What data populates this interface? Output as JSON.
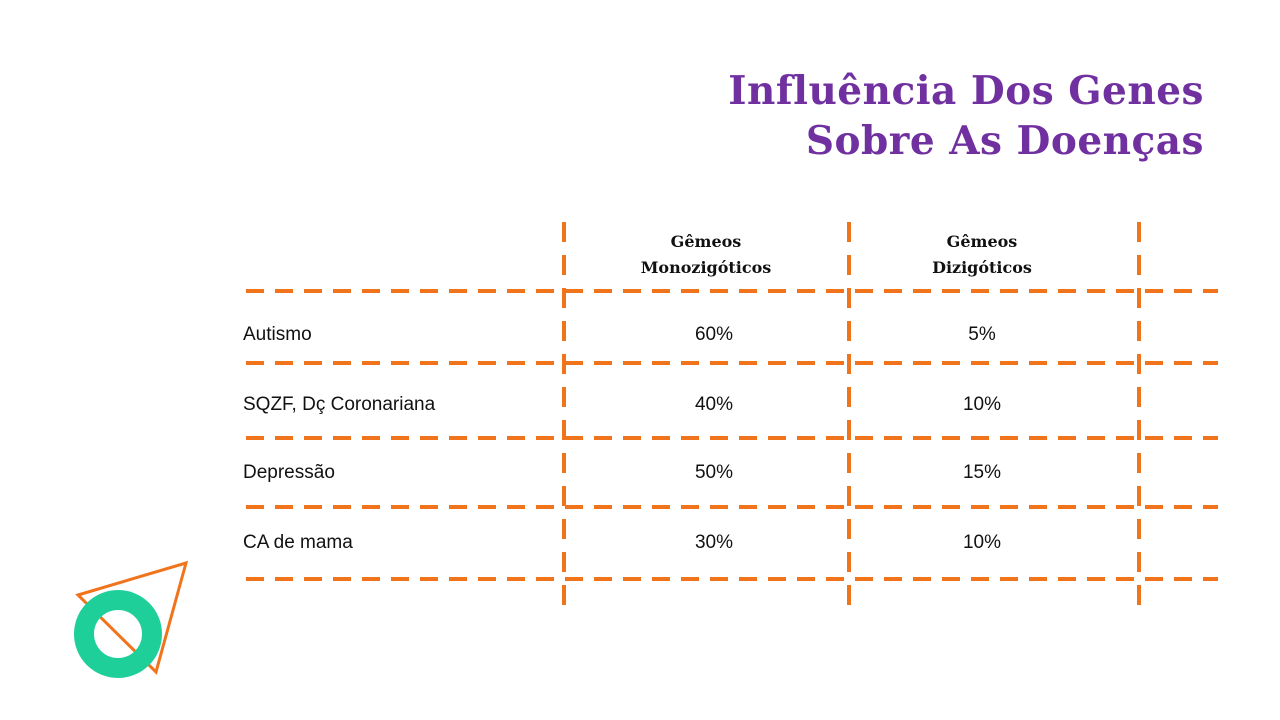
{
  "title": {
    "line1": "Influência Dos Genes",
    "line2": "Sobre As Doenças"
  },
  "table": {
    "headers": {
      "mono": {
        "line1": "Gêmeos",
        "line2": "Monozigóticos"
      },
      "di": {
        "line1": "Gêmeos",
        "line2": "Dizigóticos"
      }
    },
    "rows": [
      {
        "label": "Autismo",
        "mono": "60%",
        "di": "5%"
      },
      {
        "label": "SQZF, Dç Coronariana",
        "mono": "40%",
        "di": "10%"
      },
      {
        "label": "Depressão",
        "mono": "50%",
        "di": "15%"
      },
      {
        "label": "CA de mama",
        "mono": "30%",
        "di": "10%"
      }
    ]
  },
  "colors": {
    "title": "#7030a0",
    "grid": "#f0741c",
    "ring": "#1fcf9a",
    "triangle": "#f0741c"
  }
}
